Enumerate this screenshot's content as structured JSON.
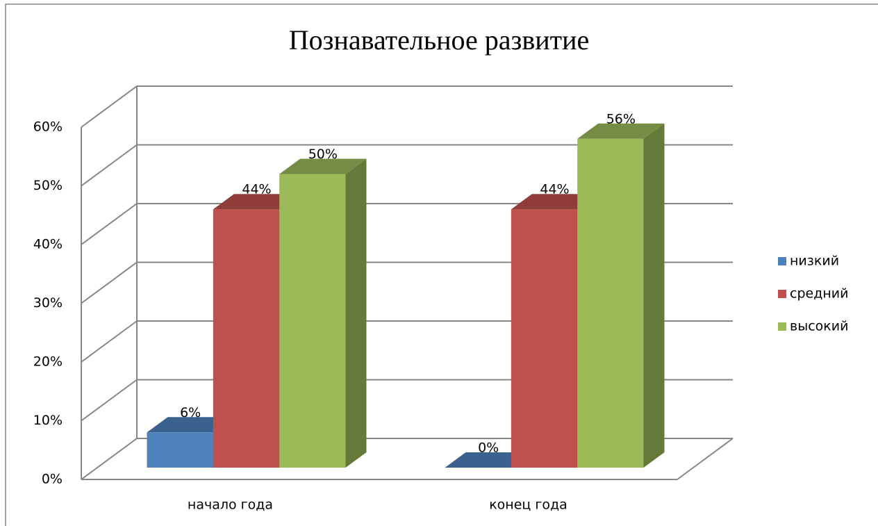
{
  "chart_data": {
    "type": "bar3d",
    "title": "Познавательное развитие",
    "categories": [
      "начало года",
      "конец года"
    ],
    "series": [
      {
        "name": "низкий",
        "color": "#4f81bd",
        "values": [
          6,
          0
        ],
        "value_labels": [
          "6%",
          "0%"
        ]
      },
      {
        "name": "средний",
        "color": "#c0504d",
        "values": [
          44,
          44
        ],
        "value_labels": [
          "44%",
          "44%"
        ]
      },
      {
        "name": "высокий",
        "color": "#9bbb59",
        "values": [
          50,
          56
        ],
        "value_labels": [
          "50%",
          "56%"
        ]
      }
    ],
    "ylim": [
      0,
      60
    ],
    "yticks": [
      {
        "value": 0,
        "label": "0%"
      },
      {
        "value": 10,
        "label": "10%"
      },
      {
        "value": 20,
        "label": "20%"
      },
      {
        "value": 30,
        "label": "30%"
      },
      {
        "value": 40,
        "label": "40%"
      },
      {
        "value": 50,
        "label": "50%"
      },
      {
        "value": 60,
        "label": "60%"
      }
    ],
    "grid": true,
    "legend": "right"
  }
}
